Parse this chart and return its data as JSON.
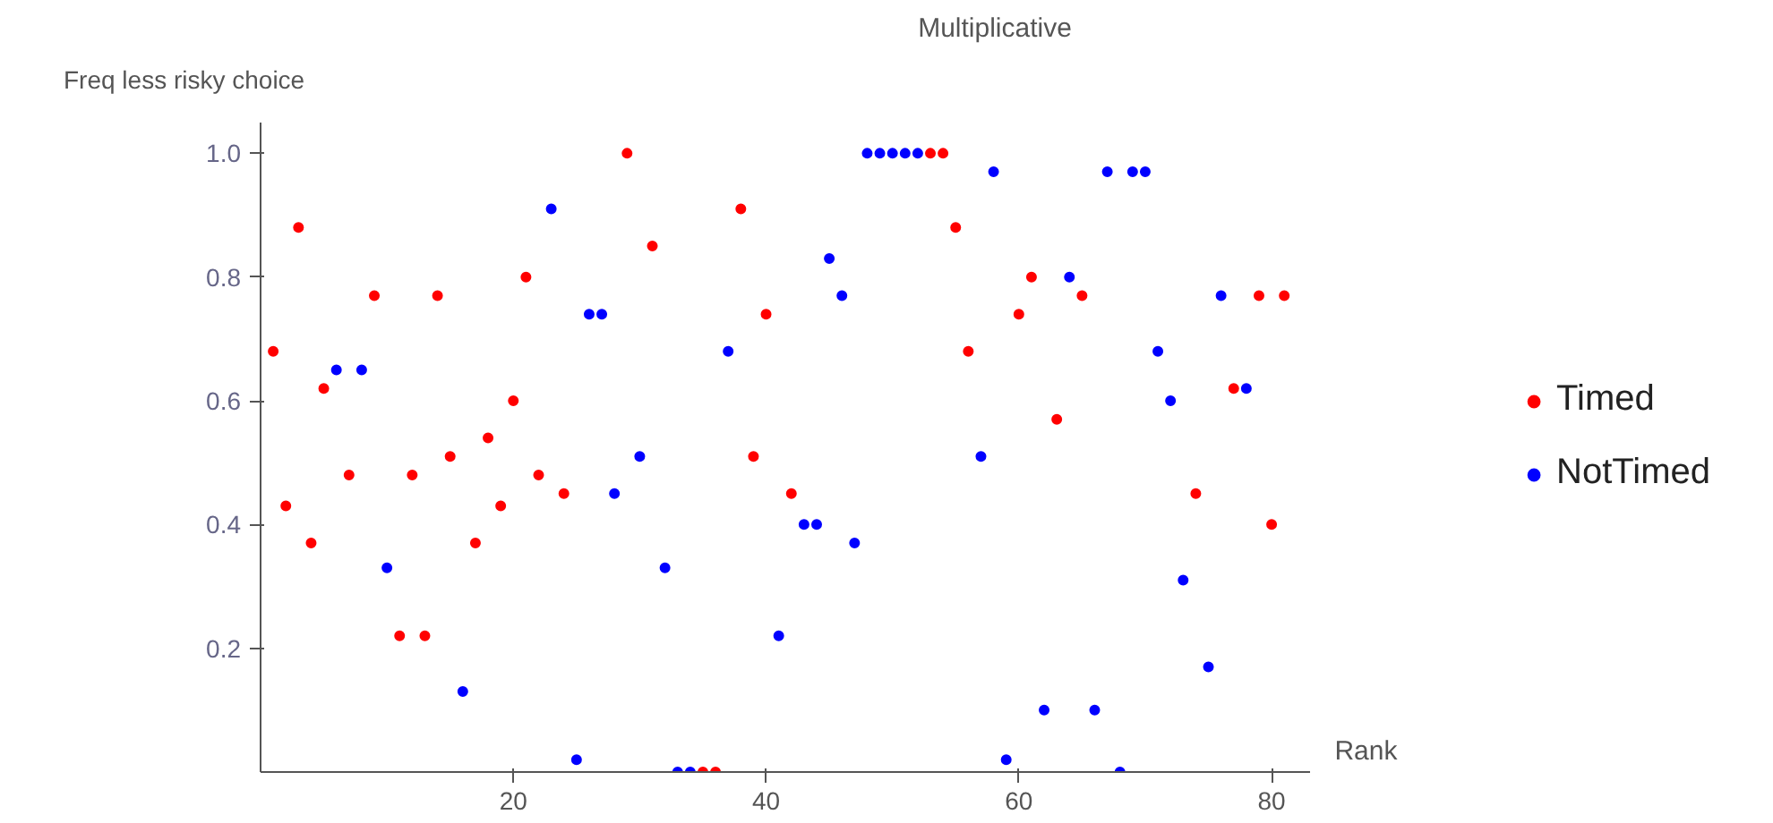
{
  "chart_data": {
    "type": "scatter",
    "title": "Multiplicative",
    "xlabel": "Rank",
    "ylabel": "Freq less risky choice",
    "xlim": [
      0,
      83
    ],
    "ylim": [
      0,
      1.05
    ],
    "xticks": [
      20,
      40,
      60,
      80
    ],
    "yticks": [
      0.2,
      0.4,
      0.6,
      0.8,
      {
        "value": 1.0,
        "label": "1.0"
      }
    ],
    "grid": false,
    "legend": "right",
    "marker": "circle",
    "series": [
      {
        "name": "Timed",
        "color": "#ff0000",
        "x": [
          1,
          2,
          3,
          4,
          5,
          7,
          9,
          11,
          12,
          13,
          14,
          15,
          17,
          18,
          19,
          20,
          21,
          22,
          24,
          29,
          31,
          35,
          36,
          38,
          39,
          40,
          42,
          53,
          54,
          55,
          56,
          60,
          61,
          63,
          65,
          74,
          77,
          79,
          80,
          81
        ],
        "values": [
          0.68,
          0.43,
          0.88,
          0.37,
          0.62,
          0.48,
          0.77,
          0.22,
          0.48,
          0.22,
          0.77,
          0.51,
          0.37,
          0.54,
          0.43,
          0.6,
          0.8,
          0.48,
          0.45,
          1.0,
          0.85,
          0,
          0,
          0.91,
          0.51,
          0.74,
          0.45,
          1.0,
          1.0,
          0.88,
          0.68,
          0.74,
          0.8,
          0.57,
          0.77,
          0.45,
          0.62,
          0.77,
          0.4,
          0.77
        ]
      },
      {
        "name": "NotTimed",
        "color": "#0000ff",
        "x": [
          6,
          8,
          10,
          16,
          23,
          25,
          26,
          27,
          28,
          30,
          32,
          33,
          34,
          37,
          41,
          43,
          44,
          45,
          46,
          47,
          48,
          49,
          50,
          51,
          52,
          57,
          58,
          59,
          62,
          64,
          66,
          67,
          68,
          69,
          70,
          71,
          72,
          73,
          75,
          76,
          78
        ],
        "values": [
          0.65,
          0.65,
          0.33,
          0.13,
          0.91,
          0.02,
          0.74,
          0.74,
          0.45,
          0.51,
          0.33,
          0,
          0,
          0.68,
          0.22,
          0.4,
          0.4,
          0.83,
          0.77,
          0.37,
          1.0,
          1.0,
          1.0,
          1.0,
          1.0,
          0.51,
          0.97,
          0.02,
          0.1,
          0.8,
          0.1,
          0.97,
          0,
          0.97,
          0.97,
          0.68,
          0.6,
          0.31,
          0.17,
          0.77,
          0.62
        ]
      }
    ]
  }
}
